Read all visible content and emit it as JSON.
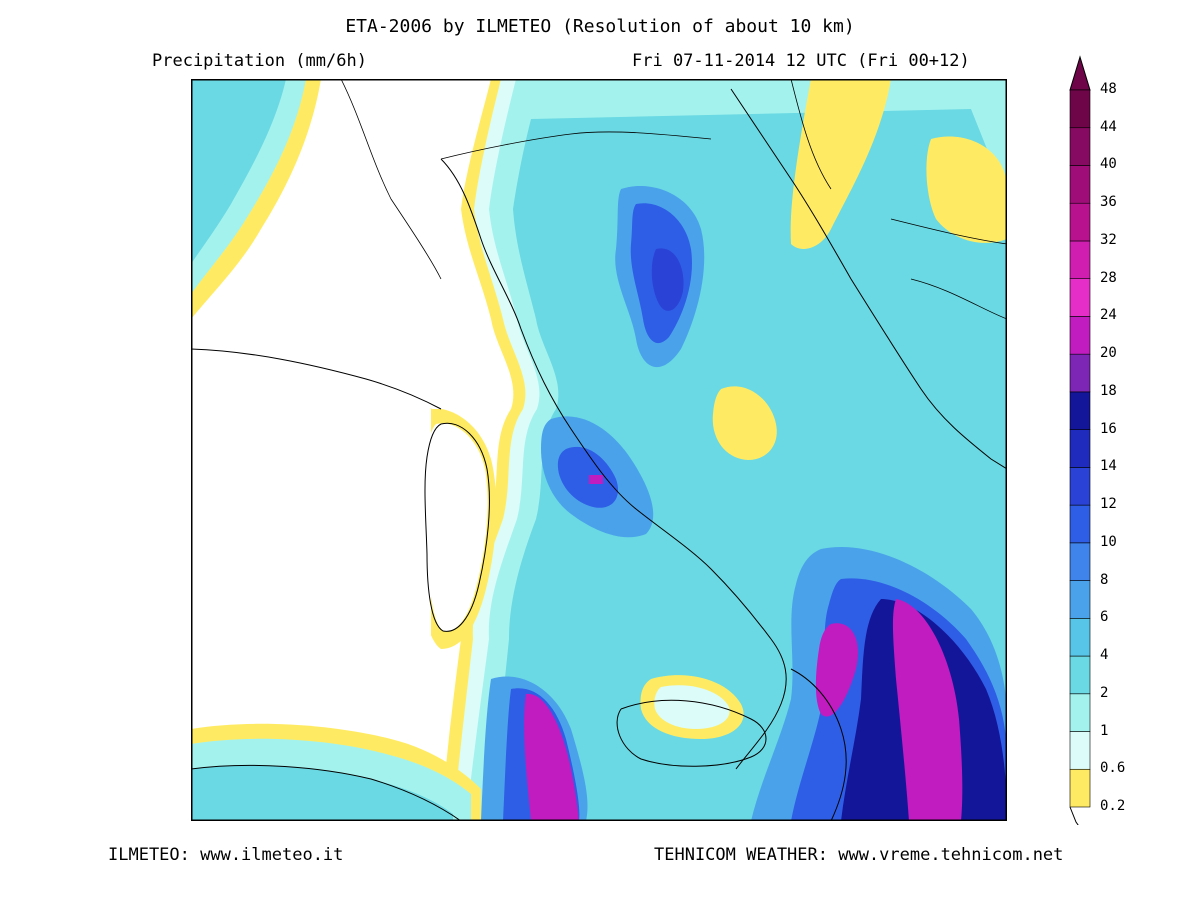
{
  "header": {
    "title": "ETA-2006 by ILMETEO (Resolution of about 10 km)",
    "variable": "Precipitation (mm/6h)",
    "valid_time": "Fri 07-11-2014 12 UTC (Fri 00+12)"
  },
  "footer": {
    "left": "ILMETEO: www.ilmeteo.it",
    "right": "TEHNICOM WEATHER: www.vreme.tehnicom.net"
  },
  "legend": {
    "levels": [
      "0.2",
      "0.6",
      "1",
      "2",
      "4",
      "6",
      "8",
      "10",
      "12",
      "14",
      "16",
      "18",
      "20",
      "24",
      "28",
      "32",
      "36",
      "40",
      "44",
      "48"
    ],
    "colors": [
      "#ffeb63",
      "#dcfcfa",
      "#a4f2ee",
      "#6ad9e3",
      "#57c5e8",
      "#4aa3ea",
      "#3e84ea",
      "#2f5ee6",
      "#2a43d6",
      "#1f2bbd",
      "#14169a",
      "#7d25b5",
      "#c01cc0",
      "#e52dc7",
      "#d01eb0",
      "#b8128f",
      "#9e0d78",
      "#870a62",
      "#6e0549",
      "#6e0549"
    ]
  },
  "map": {
    "region": "Italy / Adriatic",
    "colors": {
      "land_bg": "#ffffff",
      "coast": "#000000"
    }
  }
}
